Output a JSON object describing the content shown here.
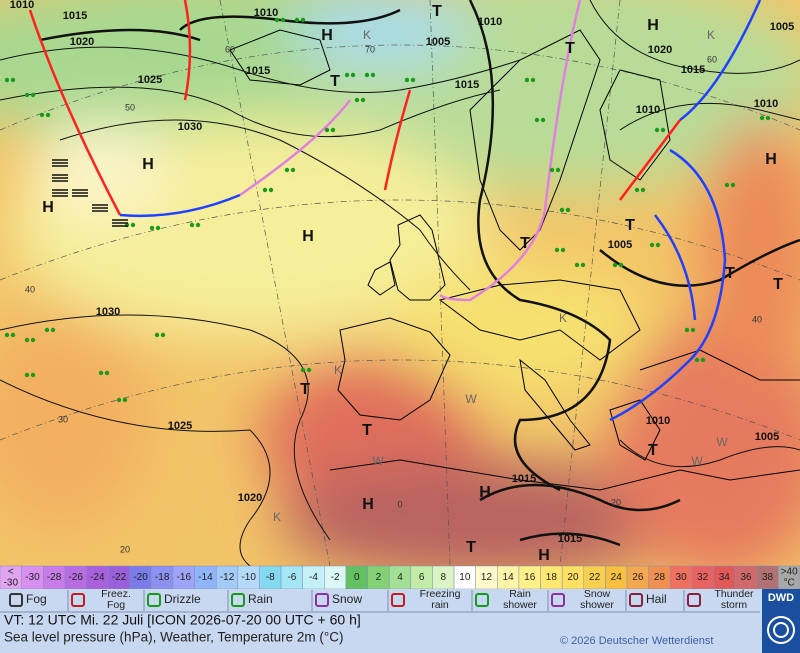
{
  "map": {
    "labels": [
      "1010",
      "1015",
      "1020",
      "1025",
      "1030",
      "1010",
      "1015",
      "1005",
      "1010",
      "1015",
      "1020",
      "1015",
      "1005",
      "1010",
      "1010",
      "1005",
      "1030",
      "1025",
      "1020",
      "1015",
      "1015",
      "1010",
      "1005",
      "H",
      "H",
      "H",
      "H",
      "H",
      "H",
      "H",
      "H",
      "H",
      "T",
      "T",
      "T",
      "T",
      "T",
      "T",
      "T",
      "T",
      "T",
      "T",
      "T",
      "K",
      "K",
      "K",
      "K",
      "K",
      "W",
      "W",
      "W",
      "W",
      "60",
      "50",
      "70",
      "40",
      "30",
      "20",
      "0",
      "20",
      "40",
      "60"
    ]
  },
  "color_scale": {
    "first": {
      "lines": [
        "<",
        "-30"
      ],
      "color": "#e0a4f0"
    },
    "cells": [
      {
        "label": "-30",
        "color": "#d890f0"
      },
      {
        "label": "-28",
        "color": "#c87ce8"
      },
      {
        "label": "-26",
        "color": "#b86ce2"
      },
      {
        "label": "-24",
        "color": "#a860dc"
      },
      {
        "label": "-22",
        "color": "#9a60dc"
      },
      {
        "label": "-20",
        "color": "#7c7ce8"
      },
      {
        "label": "-18",
        "color": "#8c90f0"
      },
      {
        "label": "-16",
        "color": "#a0a4f8"
      },
      {
        "label": "-14",
        "color": "#90b4f8"
      },
      {
        "label": "-12",
        "color": "#a4caf8"
      },
      {
        "label": "-10",
        "color": "#b4daf8"
      },
      {
        "label": "-8",
        "color": "#84d8f0"
      },
      {
        "label": "-6",
        "color": "#a4e6f6"
      },
      {
        "label": "-4",
        "color": "#c4f0f8"
      },
      {
        "label": "-2",
        "color": "#dcf8f4"
      },
      {
        "label": "0",
        "color": "#62c062"
      },
      {
        "label": "2",
        "color": "#84d074"
      },
      {
        "label": "4",
        "color": "#a4e094"
      },
      {
        "label": "6",
        "color": "#c2eca8"
      },
      {
        "label": "8",
        "color": "#dcf4c4"
      },
      {
        "label": "10",
        "color": "#ffffff"
      },
      {
        "label": "12",
        "color": "#fffacc"
      },
      {
        "label": "14",
        "color": "#fff5a8"
      },
      {
        "label": "16",
        "color": "#fff088"
      },
      {
        "label": "18",
        "color": "#ffe870"
      },
      {
        "label": "20",
        "color": "#ffe060"
      },
      {
        "label": "22",
        "color": "#f8d050"
      },
      {
        "label": "24",
        "color": "#f8c040"
      },
      {
        "label": "26",
        "color": "#f4a850"
      },
      {
        "label": "28",
        "color": "#f09050"
      },
      {
        "label": "30",
        "color": "#f07060"
      },
      {
        "label": "32",
        "color": "#e86262"
      },
      {
        "label": "34",
        "color": "#e05a5a"
      },
      {
        "label": "36",
        "color": "#d06a6a"
      },
      {
        "label": "38",
        "color": "#b07272"
      }
    ],
    "last": {
      "lines": [
        ">40",
        "°C"
      ],
      "color": "#a8a8a8"
    }
  },
  "legend": {
    "items": [
      {
        "lines": [
          "Fog"
        ]
      },
      {
        "lines": [
          "Freez.",
          "Fog"
        ]
      },
      {
        "lines": [
          "Drizzle"
        ]
      },
      {
        "lines": [
          "Rain"
        ]
      },
      {
        "lines": [
          "Snow"
        ]
      },
      {
        "lines": [
          "Freezing",
          "rain"
        ]
      },
      {
        "lines": [
          "Rain",
          "shower"
        ]
      },
      {
        "lines": [
          "Snow",
          "shower"
        ]
      },
      {
        "lines": [
          "Hail"
        ]
      },
      {
        "lines": [
          "Thunder",
          "storm"
        ]
      }
    ]
  },
  "footer": {
    "valid_time": "VT: 12 UTC Mi.  22 Juli [ICON 2026-07-20  00 UTC + 60 h]",
    "description": "Sea level pressure (hPa), Weather, Temperature 2m (°C)",
    "copyright": "© 2026 Deutscher Wetterdienst",
    "logo": "DWD"
  }
}
